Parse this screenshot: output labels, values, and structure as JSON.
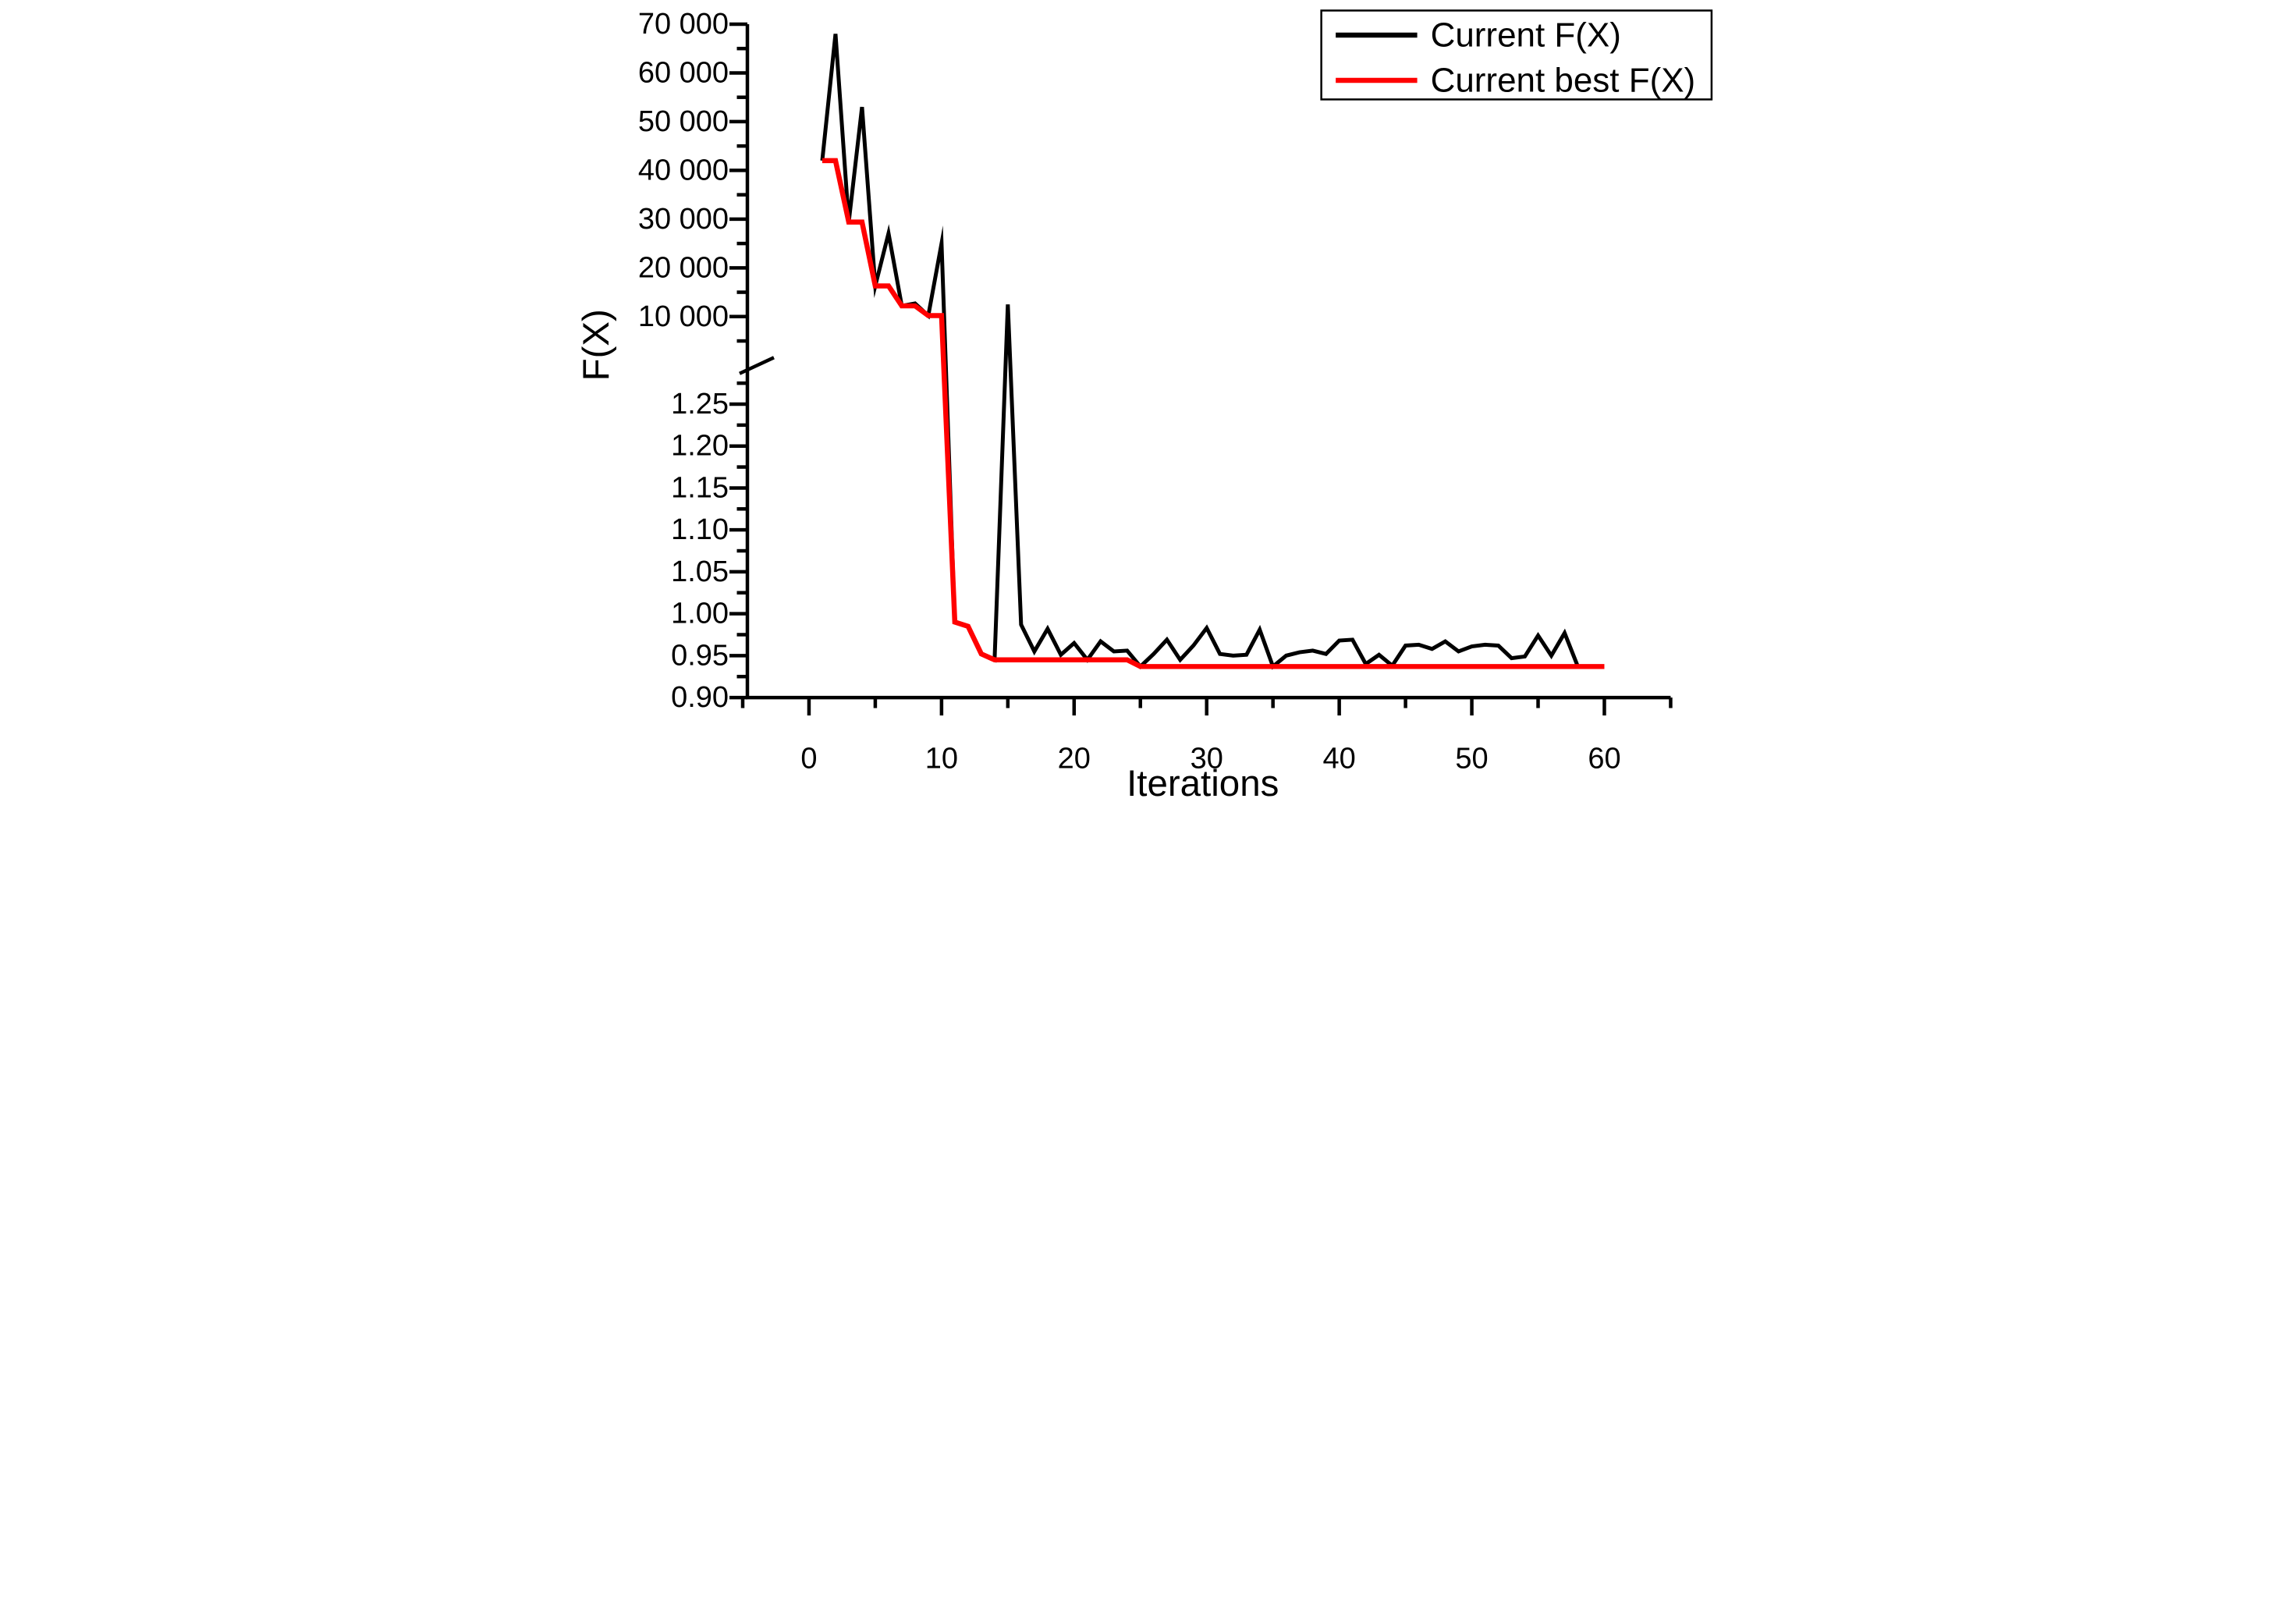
{
  "colors": {
    "foreground": "#000000",
    "series1": "#000000",
    "series2": "#ff0000",
    "background": "#ffffff"
  },
  "axes": {
    "x_title": "Iterations",
    "y_title": "F(X)"
  },
  "legend": {
    "position": "top-right",
    "items": [
      {
        "label": "Current F(X)",
        "color": "#000000"
      },
      {
        "label": "Current best F(X)",
        "color": "#ff0000"
      }
    ]
  },
  "chart_data": {
    "type": "line",
    "title": "",
    "xlabel": "Iterations",
    "ylabel": "F(X)",
    "grid": false,
    "legend_position": "top-right",
    "x_axis_range": [
      -5,
      65
    ],
    "x_major_ticks": [
      0,
      10,
      20,
      30,
      40,
      50,
      60
    ],
    "x_major_labels": [
      "0",
      "10",
      "20",
      "30",
      "40",
      "50",
      "60"
    ],
    "x_minor_ticks": [
      -5,
      5,
      15,
      25,
      35,
      45,
      55,
      65
    ],
    "y_axis_broken": true,
    "y_upper_segment": {
      "scale": "linear",
      "range": [
        10000,
        70000
      ],
      "major_ticks": [
        70000,
        60000,
        50000,
        40000,
        30000,
        20000,
        10000
      ],
      "major_labels": [
        "70 000",
        "60 000",
        "50 000",
        "40 000",
        "30 000",
        "20 000",
        "10 000"
      ],
      "minor_ticks": [
        65000,
        55000,
        45000,
        35000,
        25000,
        15000,
        5000
      ]
    },
    "y_lower_segment": {
      "scale": "linear",
      "range": [
        0.9,
        1.275
      ],
      "major_ticks": [
        1.25,
        1.2,
        1.15,
        1.1,
        1.05,
        1.0,
        0.95,
        0.9
      ],
      "major_labels": [
        "1.25",
        "1.20",
        "1.15",
        "1.10",
        "1.05",
        "1.00",
        "0.95",
        "0.90"
      ],
      "minor_ticks": [
        1.275,
        1.225,
        1.175,
        1.125,
        1.075,
        1.025,
        0.975,
        0.925
      ]
    },
    "series": [
      {
        "name": "Current F(X)",
        "color": "#000000",
        "x": [
          1,
          2,
          3,
          4,
          5,
          6,
          7,
          8,
          9,
          10,
          11,
          12,
          13,
          14,
          15,
          16,
          17,
          18,
          19,
          20,
          21,
          22,
          23,
          24,
          25,
          26,
          27,
          28,
          29,
          30,
          31,
          32,
          33,
          34,
          35,
          36,
          37,
          38,
          39,
          40,
          41,
          42,
          43,
          44,
          45,
          46,
          47,
          48,
          49,
          50,
          51,
          52,
          53,
          54,
          55,
          56,
          57,
          58
        ],
        "y": [
          42000,
          68000,
          29400,
          53000,
          16300,
          27100,
          12200,
          12700,
          10200,
          25000,
          0.99,
          0.985,
          0.952,
          0.945,
          12500,
          0.987,
          0.955,
          0.982,
          0.951,
          0.965,
          0.945,
          0.967,
          0.955,
          0.956,
          0.937,
          0.952,
          0.969,
          0.945,
          0.962,
          0.983,
          0.952,
          0.95,
          0.951,
          0.981,
          0.937,
          0.95,
          0.954,
          0.956,
          0.952,
          0.968,
          0.969,
          0.94,
          0.951,
          0.938,
          0.962,
          0.963,
          0.958,
          0.967,
          0.955,
          0.961,
          0.963,
          0.962,
          0.947,
          0.949,
          0.974,
          0.95,
          0.977,
          0.937
        ]
      },
      {
        "name": "Current best F(X)",
        "color": "#ff0000",
        "x": [
          1,
          2,
          3,
          4,
          5,
          6,
          7,
          8,
          9,
          10,
          11,
          12,
          13,
          14,
          15,
          16,
          17,
          18,
          19,
          20,
          21,
          22,
          23,
          24,
          25,
          26,
          27,
          28,
          29,
          30,
          31,
          32,
          33,
          34,
          35,
          36,
          37,
          38,
          39,
          40,
          41,
          42,
          43,
          44,
          45,
          46,
          47,
          48,
          49,
          50,
          51,
          52,
          53,
          54,
          55,
          56,
          57,
          58,
          59,
          60
        ],
        "y": [
          42000,
          42000,
          29400,
          29400,
          16300,
          16300,
          12200,
          12200,
          10200,
          10200,
          0.99,
          0.985,
          0.952,
          0.945,
          0.945,
          0.945,
          0.945,
          0.945,
          0.945,
          0.945,
          0.945,
          0.945,
          0.945,
          0.945,
          0.937,
          0.937,
          0.937,
          0.937,
          0.937,
          0.937,
          0.937,
          0.937,
          0.937,
          0.937,
          0.937,
          0.937,
          0.937,
          0.937,
          0.937,
          0.937,
          0.937,
          0.937,
          0.937,
          0.937,
          0.937,
          0.937,
          0.937,
          0.937,
          0.937,
          0.937,
          0.937,
          0.937,
          0.937,
          0.937,
          0.937,
          0.937,
          0.937,
          0.937,
          0.937,
          0.937
        ]
      }
    ]
  }
}
